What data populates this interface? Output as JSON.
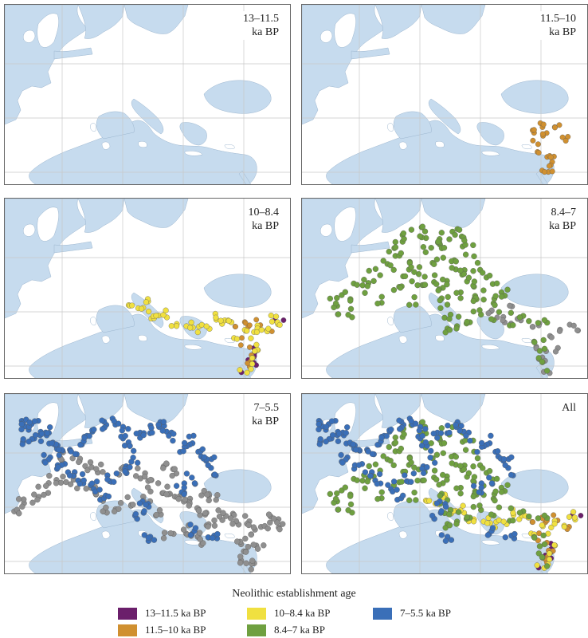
{
  "panels": [
    {
      "label_line1": "13–11.5",
      "label_line2": "ka BP"
    },
    {
      "label_line1": "11.5–10",
      "label_line2": "ka BP"
    },
    {
      "label_line1": "10–8.4",
      "label_line2": "ka BP"
    },
    {
      "label_line1": "8.4–7",
      "label_line2": "ka BP"
    },
    {
      "label_line1": "7–5.5",
      "label_line2": "ka BP"
    },
    {
      "label_line1": "All",
      "label_line2": ""
    }
  ],
  "legend": {
    "title": "Neolithic establishment age",
    "items": [
      {
        "label": "13–11.5 ka BP",
        "color": "#6b1f6b"
      },
      {
        "label": "11.5–10 ka BP",
        "color": "#d09030"
      },
      {
        "label": "10–8.4 ka BP",
        "color": "#f0e040"
      },
      {
        "label": "8.4–7 ka BP",
        "color": "#6fa040"
      },
      {
        "label": "7–5.5 ka BP",
        "color": "#3a6fb8"
      }
    ]
  },
  "colors": {
    "sea": "#c6dbee",
    "land": "#ffffff",
    "older_sites": "#8f8f8f",
    "grid": "#c8c8c8"
  }
}
